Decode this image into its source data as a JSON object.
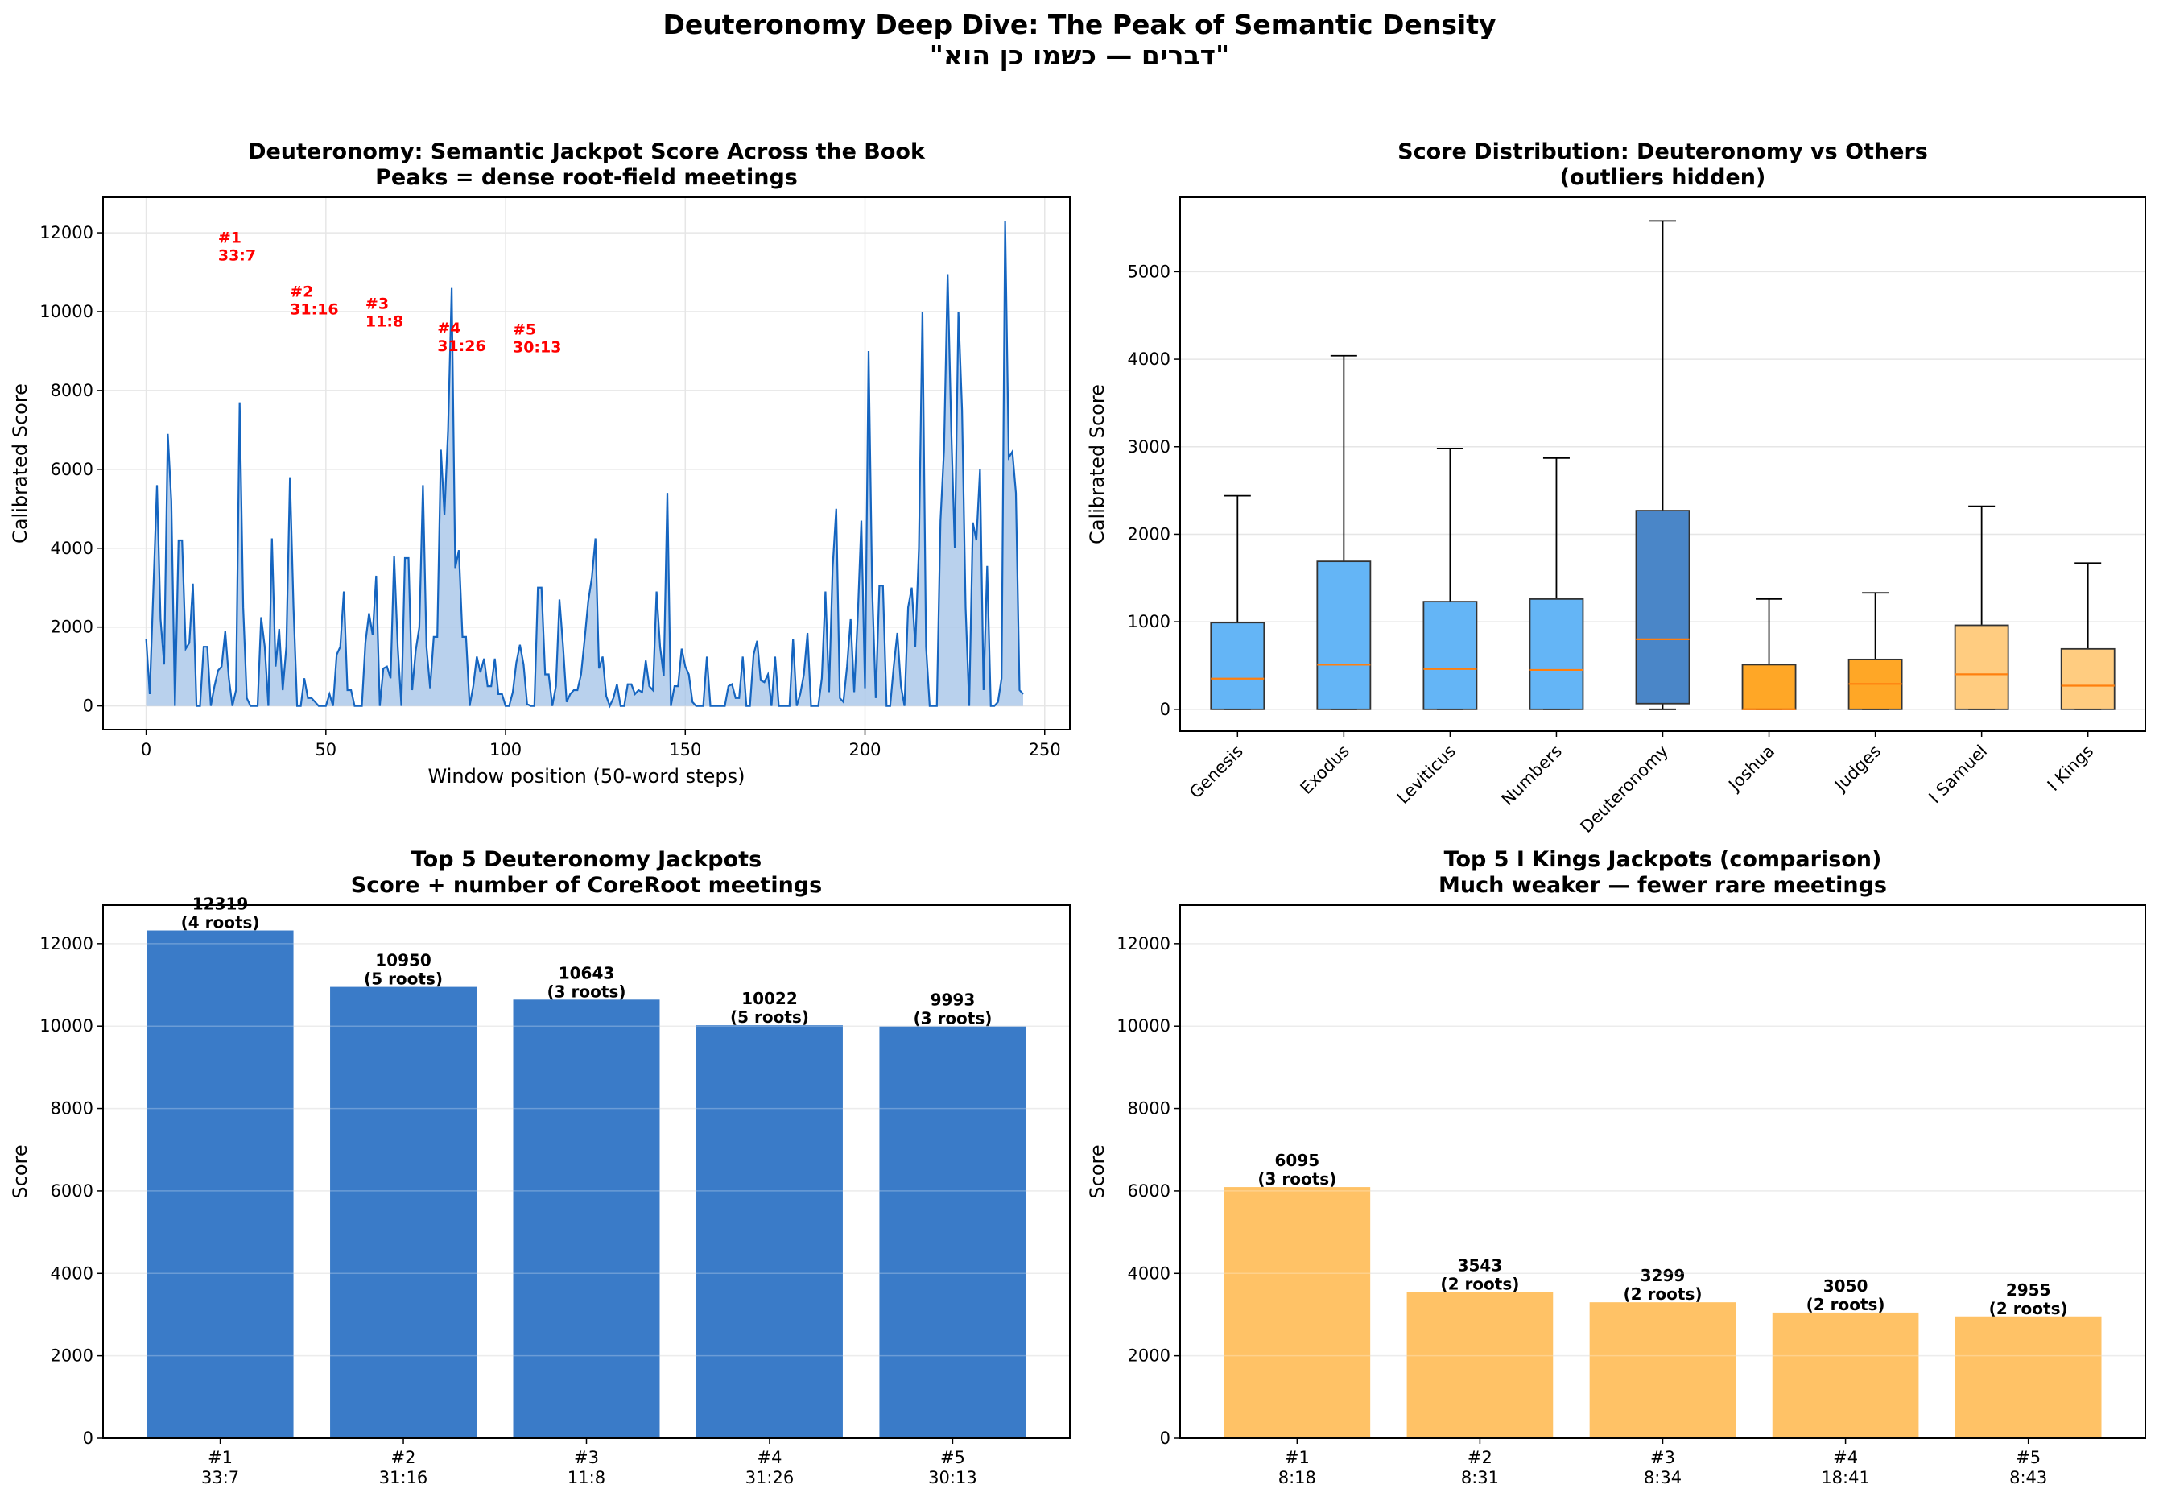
{
  "suptitle": "Deuteronomy Deep Dive: The Peak of Semantic Density",
  "suptitle_hebrew": "\"דברים — כשמו כן הוא\"",
  "colors": {
    "line": "#1565c0",
    "fill": "#9bbde6",
    "deut_bar": "#3a7bc8",
    "kings_bar": "#ffc266",
    "median": "#ff7f0e",
    "box_torah": "#64b5f6",
    "box_deut": "#4a86c8",
    "box_josh": "#ffa726",
    "box_sam": "#ffcc80"
  },
  "chart_data": [
    {
      "type": "area",
      "title": "Deuteronomy: Semantic Jackpot Score Across the Book",
      "subtitle": "Peaks = dense root-field meetings",
      "xlabel": "Window position (50-word steps)",
      "ylabel": "Calibrated Score",
      "xlim": [
        -12,
        257
      ],
      "ylim": [
        -600,
        12900
      ],
      "xticks": [
        0,
        50,
        100,
        150,
        200,
        250
      ],
      "yticks": [
        0,
        2000,
        4000,
        6000,
        8000,
        10000,
        12000
      ],
      "grid": true,
      "points": [
        [
          0,
          1700
        ],
        [
          1,
          300
        ],
        [
          3,
          5600
        ],
        [
          4,
          2200
        ],
        [
          5,
          1050
        ],
        [
          6,
          6900
        ],
        [
          7,
          5200
        ],
        [
          8,
          0
        ],
        [
          9,
          4200
        ],
        [
          10,
          4200
        ],
        [
          11,
          1450
        ],
        [
          12,
          1600
        ],
        [
          13,
          3100
        ],
        [
          14,
          0
        ],
        [
          15,
          0
        ],
        [
          16,
          1500
        ],
        [
          17,
          1500
        ],
        [
          18,
          0
        ],
        [
          19,
          500
        ],
        [
          20,
          900
        ],
        [
          21,
          1000
        ],
        [
          22,
          1900
        ],
        [
          23,
          700
        ],
        [
          24,
          0
        ],
        [
          25,
          400
        ],
        [
          26,
          7700
        ],
        [
          27,
          2500
        ],
        [
          28,
          200
        ],
        [
          29,
          0
        ],
        [
          31,
          0
        ],
        [
          32,
          2250
        ],
        [
          33,
          1500
        ],
        [
          34,
          0
        ],
        [
          35,
          4250
        ],
        [
          36,
          1000
        ],
        [
          37,
          1950
        ],
        [
          38,
          400
        ],
        [
          39,
          1500
        ],
        [
          40,
          5800
        ],
        [
          41,
          2500
        ],
        [
          42,
          0
        ],
        [
          43,
          0
        ],
        [
          44,
          700
        ],
        [
          45,
          200
        ],
        [
          46,
          200
        ],
        [
          47,
          100
        ],
        [
          48,
          0
        ],
        [
          50,
          0
        ],
        [
          51,
          300
        ],
        [
          52,
          0
        ],
        [
          53,
          1300
        ],
        [
          54,
          1500
        ],
        [
          55,
          2900
        ],
        [
          56,
          400
        ],
        [
          57,
          400
        ],
        [
          58,
          0
        ],
        [
          60,
          0
        ],
        [
          61,
          1600
        ],
        [
          62,
          2350
        ],
        [
          63,
          1800
        ],
        [
          64,
          3300
        ],
        [
          65,
          0
        ],
        [
          66,
          950
        ],
        [
          67,
          1000
        ],
        [
          68,
          700
        ],
        [
          69,
          3800
        ],
        [
          70,
          1500
        ],
        [
          71,
          0
        ],
        [
          72,
          3750
        ],
        [
          73,
          3750
        ],
        [
          74,
          400
        ],
        [
          75,
          1400
        ],
        [
          76,
          2000
        ],
        [
          77,
          5600
        ],
        [
          78,
          1500
        ],
        [
          79,
          450
        ],
        [
          80,
          1750
        ],
        [
          81,
          1750
        ],
        [
          82,
          6500
        ],
        [
          83,
          4850
        ],
        [
          84,
          7000
        ],
        [
          85,
          10600
        ],
        [
          86,
          3500
        ],
        [
          87,
          3950
        ],
        [
          88,
          1750
        ],
        [
          89,
          1750
        ],
        [
          90,
          0
        ],
        [
          91,
          500
        ],
        [
          92,
          1250
        ],
        [
          93,
          850
        ],
        [
          94,
          1200
        ],
        [
          95,
          500
        ],
        [
          96,
          500
        ],
        [
          97,
          1200
        ],
        [
          98,
          300
        ],
        [
          99,
          300
        ],
        [
          100,
          0
        ],
        [
          101,
          0
        ],
        [
          102,
          350
        ],
        [
          103,
          1100
        ],
        [
          104,
          1550
        ],
        [
          105,
          1050
        ],
        [
          106,
          50
        ],
        [
          107,
          0
        ],
        [
          108,
          0
        ],
        [
          109,
          3000
        ],
        [
          110,
          3000
        ],
        [
          111,
          800
        ],
        [
          112,
          800
        ],
        [
          113,
          0
        ],
        [
          114,
          500
        ],
        [
          115,
          2700
        ],
        [
          116,
          1500
        ],
        [
          117,
          100
        ],
        [
          118,
          300
        ],
        [
          119,
          400
        ],
        [
          120,
          400
        ],
        [
          121,
          800
        ],
        [
          122,
          1700
        ],
        [
          123,
          2650
        ],
        [
          124,
          3250
        ],
        [
          125,
          4250
        ],
        [
          126,
          950
        ],
        [
          127,
          1250
        ],
        [
          128,
          250
        ],
        [
          129,
          0
        ],
        [
          130,
          200
        ],
        [
          131,
          550
        ],
        [
          132,
          0
        ],
        [
          133,
          0
        ],
        [
          134,
          550
        ],
        [
          135,
          550
        ],
        [
          136,
          300
        ],
        [
          137,
          400
        ],
        [
          138,
          350
        ],
        [
          139,
          1150
        ],
        [
          140,
          500
        ],
        [
          141,
          400
        ],
        [
          142,
          2900
        ],
        [
          143,
          1500
        ],
        [
          144,
          750
        ],
        [
          145,
          5400
        ],
        [
          146,
          0
        ],
        [
          147,
          500
        ],
        [
          148,
          500
        ],
        [
          149,
          1450
        ],
        [
          150,
          1000
        ],
        [
          151,
          800
        ],
        [
          152,
          100
        ],
        [
          153,
          0
        ],
        [
          155,
          0
        ],
        [
          156,
          1250
        ],
        [
          157,
          0
        ],
        [
          161,
          0
        ],
        [
          162,
          500
        ],
        [
          163,
          550
        ],
        [
          164,
          200
        ],
        [
          165,
          200
        ],
        [
          166,
          1250
        ],
        [
          167,
          0
        ],
        [
          168,
          0
        ],
        [
          169,
          1300
        ],
        [
          170,
          1650
        ],
        [
          171,
          650
        ],
        [
          172,
          600
        ],
        [
          173,
          800
        ],
        [
          174,
          0
        ],
        [
          175,
          1250
        ],
        [
          176,
          0
        ],
        [
          179,
          0
        ],
        [
          180,
          1700
        ],
        [
          181,
          0
        ],
        [
          182,
          300
        ],
        [
          183,
          800
        ],
        [
          184,
          1850
        ],
        [
          185,
          0
        ],
        [
          187,
          0
        ],
        [
          188,
          700
        ],
        [
          189,
          2900
        ],
        [
          190,
          350
        ],
        [
          191,
          3500
        ],
        [
          192,
          5000
        ],
        [
          193,
          200
        ],
        [
          194,
          100
        ],
        [
          195,
          1000
        ],
        [
          196,
          2200
        ],
        [
          197,
          350
        ],
        [
          198,
          2300
        ],
        [
          199,
          4700
        ],
        [
          200,
          450
        ],
        [
          201,
          9000
        ],
        [
          202,
          3000
        ],
        [
          203,
          200
        ],
        [
          204,
          3050
        ],
        [
          205,
          3050
        ],
        [
          206,
          0
        ],
        [
          207,
          0
        ],
        [
          208,
          1000
        ],
        [
          209,
          1850
        ],
        [
          210,
          500
        ],
        [
          211,
          0
        ],
        [
          212,
          2500
        ],
        [
          213,
          3000
        ],
        [
          214,
          1500
        ],
        [
          215,
          4000
        ],
        [
          216,
          10000
        ],
        [
          217,
          1500
        ],
        [
          218,
          0
        ],
        [
          220,
          0
        ],
        [
          221,
          4700
        ],
        [
          222,
          6500
        ],
        [
          223,
          10950
        ],
        [
          224,
          7000
        ],
        [
          225,
          4000
        ],
        [
          226,
          10000
        ],
        [
          227,
          7500
        ],
        [
          228,
          2500
        ],
        [
          229,
          0
        ],
        [
          230,
          4650
        ],
        [
          231,
          4200
        ],
        [
          232,
          6000
        ],
        [
          233,
          400
        ],
        [
          234,
          3550
        ],
        [
          235,
          0
        ],
        [
          236,
          0
        ],
        [
          237,
          100
        ],
        [
          238,
          700
        ],
        [
          239,
          12300
        ],
        [
          240,
          6300
        ],
        [
          241,
          6450
        ],
        [
          242,
          5400
        ],
        [
          243,
          400
        ],
        [
          244,
          300
        ]
      ],
      "annotations": [
        {
          "rank": "#1",
          "ref": "33:7",
          "x": 20,
          "y": 12319
        },
        {
          "rank": "#2",
          "ref": "31:16",
          "x": 40,
          "y": 10950
        },
        {
          "rank": "#3",
          "ref": "11:8",
          "x": 61,
          "y": 10643
        },
        {
          "rank": "#4",
          "ref": "31:26",
          "x": 81,
          "y": 10022
        },
        {
          "rank": "#5",
          "ref": "30:13",
          "x": 102,
          "y": 9993
        }
      ]
    },
    {
      "type": "box",
      "title": "Score Distribution: Deuteronomy vs Others",
      "subtitle": "(outliers hidden)",
      "ylabel": "Calibrated Score",
      "ylim": [
        -250,
        5850
      ],
      "yticks": [
        0,
        1000,
        2000,
        3000,
        4000,
        5000
      ],
      "grid": true,
      "boxes": [
        {
          "label": "Genesis",
          "whislo": 0,
          "q1": 0,
          "med": 350,
          "q3": 990,
          "whishi": 2440,
          "color": "box_torah"
        },
        {
          "label": "Exodus",
          "whislo": 0,
          "q1": 0,
          "med": 510,
          "q3": 1690,
          "whishi": 4040,
          "color": "box_torah"
        },
        {
          "label": "Leviticus",
          "whislo": 0,
          "q1": 0,
          "med": 460,
          "q3": 1230,
          "whishi": 2980,
          "color": "box_torah"
        },
        {
          "label": "Numbers",
          "whislo": 0,
          "q1": 0,
          "med": 450,
          "q3": 1260,
          "whishi": 2870,
          "color": "box_torah"
        },
        {
          "label": "Deuteronomy",
          "whislo": 0,
          "q1": 65,
          "med": 800,
          "q3": 2270,
          "whishi": 5580,
          "color": "box_deut"
        },
        {
          "label": "Joshua",
          "whislo": 0,
          "q1": 0,
          "med": 0,
          "q3": 510,
          "whishi": 1260,
          "color": "box_josh"
        },
        {
          "label": "Judges",
          "whislo": 0,
          "q1": 0,
          "med": 290,
          "q3": 570,
          "whishi": 1330,
          "color": "box_josh"
        },
        {
          "label": "I Samuel",
          "whislo": 0,
          "q1": 0,
          "med": 400,
          "q3": 960,
          "whishi": 2320,
          "color": "box_sam"
        },
        {
          "label": "I Kings",
          "whislo": 0,
          "q1": 0,
          "med": 270,
          "q3": 690,
          "whishi": 1670,
          "color": "box_sam"
        }
      ]
    },
    {
      "type": "bar",
      "title": "Top 5 Deuteronomy Jackpots",
      "subtitle": "Score + number of CoreRoot meetings",
      "ylabel": "Score",
      "ylim": [
        0,
        12935
      ],
      "yticks": [
        0,
        2000,
        4000,
        6000,
        8000,
        10000,
        12000
      ],
      "grid": true,
      "color": "deut_bar",
      "bars": [
        {
          "rank": "#1",
          "ref": "33:7",
          "value": 12319,
          "roots": "(4 roots)"
        },
        {
          "rank": "#2",
          "ref": "31:16",
          "value": 10950,
          "roots": "(5 roots)"
        },
        {
          "rank": "#3",
          "ref": "11:8",
          "value": 10643,
          "roots": "(3 roots)"
        },
        {
          "rank": "#4",
          "ref": "31:26",
          "value": 10022,
          "roots": "(5 roots)"
        },
        {
          "rank": "#5",
          "ref": "30:13",
          "value": 9993,
          "roots": "(3 roots)"
        }
      ]
    },
    {
      "type": "bar",
      "title": "Top 5 I Kings Jackpots (comparison)",
      "subtitle": "Much weaker — fewer rare meetings",
      "ylabel": "Score",
      "ylim": [
        0,
        12935
      ],
      "yticks": [
        0,
        2000,
        4000,
        6000,
        8000,
        10000,
        12000
      ],
      "grid": true,
      "color": "kings_bar",
      "bars": [
        {
          "rank": "#1",
          "ref": "8:18",
          "value": 6095,
          "roots": "(3 roots)"
        },
        {
          "rank": "#2",
          "ref": "8:31",
          "value": 3543,
          "roots": "(2 roots)"
        },
        {
          "rank": "#3",
          "ref": "8:34",
          "value": 3299,
          "roots": "(2 roots)"
        },
        {
          "rank": "#4",
          "ref": "18:41",
          "value": 3050,
          "roots": "(2 roots)"
        },
        {
          "rank": "#5",
          "ref": "8:43",
          "value": 2955,
          "roots": "(2 roots)"
        }
      ]
    }
  ]
}
